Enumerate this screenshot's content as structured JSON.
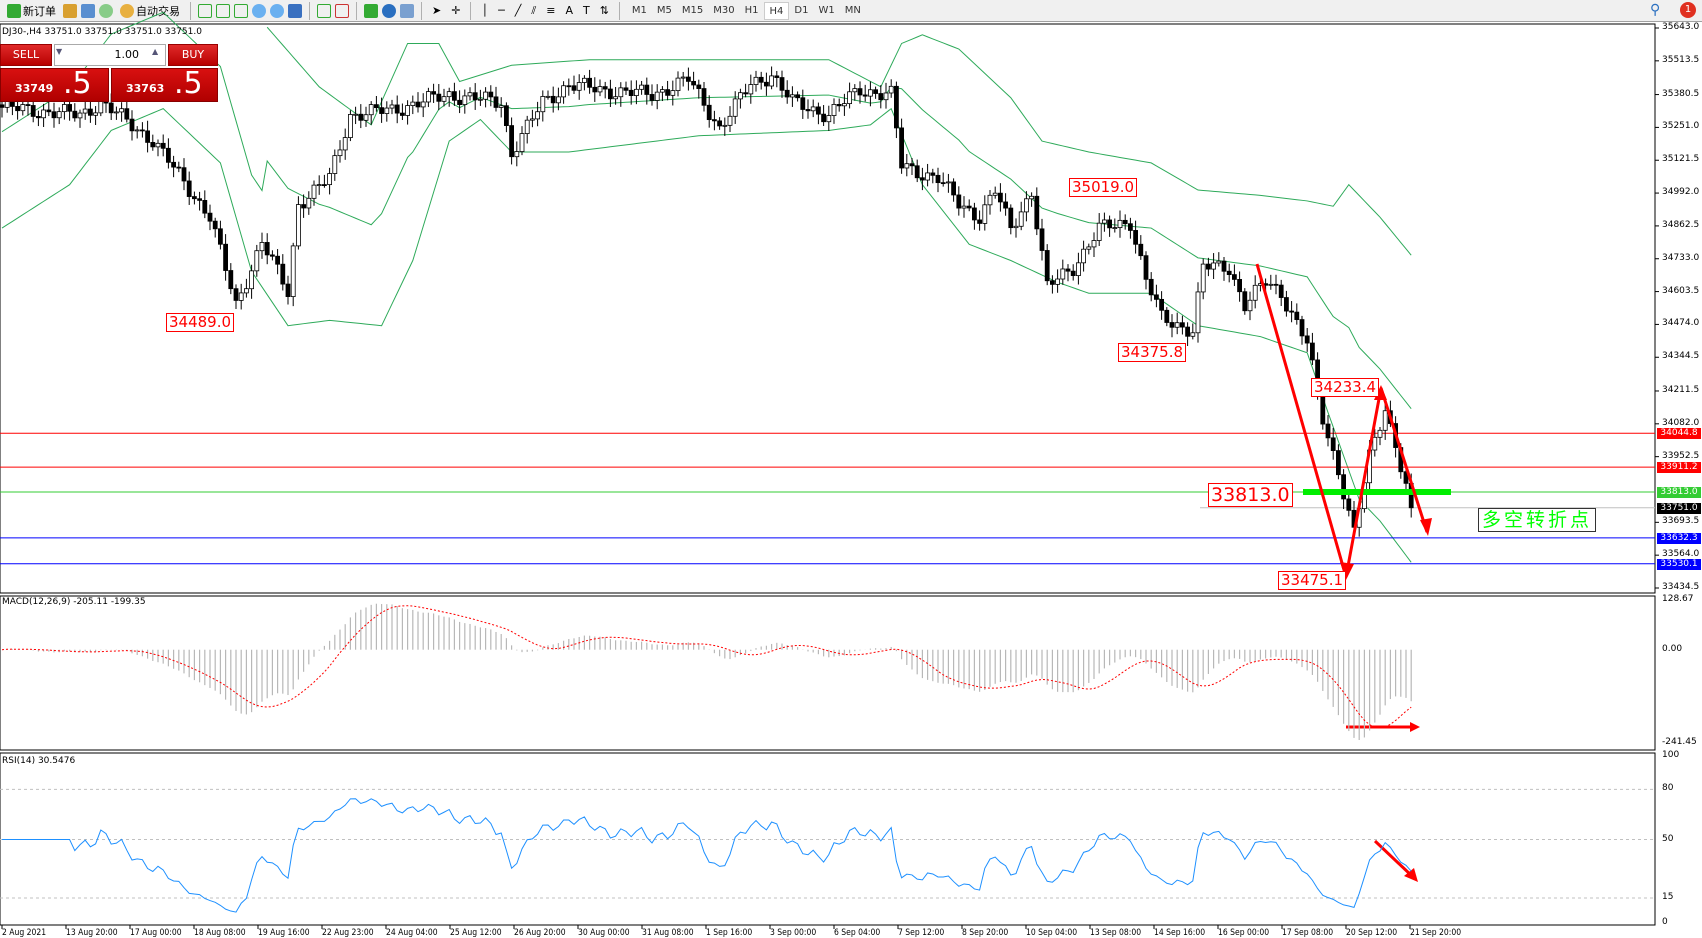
{
  "toolbar": {
    "new_order": "新订单",
    "auto_trading": "自动交易",
    "timeframes": [
      "M1",
      "M5",
      "M15",
      "M30",
      "H1",
      "H4",
      "D1",
      "W1",
      "MN"
    ],
    "active_timeframe": "H4",
    "notification_count": "1"
  },
  "header": {
    "symbol_info": "DJ30-,H4  33751.0 33751.0 33751.0 33751.0"
  },
  "trade_panel": {
    "sell_label": "SELL",
    "buy_label": "BUY",
    "lots": "1.00",
    "sell_price_small": "33749",
    "sell_price_big": ".5",
    "buy_price_small": "33763",
    "buy_price_big": ".5"
  },
  "price_axis": [
    "35643.0",
    "35513.5",
    "35380.5",
    "35251.0",
    "35121.5",
    "34992.0",
    "34862.5",
    "34733.0",
    "34603.5",
    "34474.0",
    "34344.5",
    "34211.5",
    "34082.0",
    "33952.5",
    "33693.5",
    "33564.0",
    "33434.5"
  ],
  "levels": [
    {
      "price": "34044.8",
      "color": "#ff0000"
    },
    {
      "price": "33911.2",
      "color": "#ff0000"
    },
    {
      "price": "33813.0",
      "color": "#33cc33"
    },
    {
      "price": "33751.0",
      "color": "#000000",
      "line": "#c0c0c0"
    },
    {
      "price": "33632.3",
      "color": "#0000ff"
    },
    {
      "price": "33530.1",
      "color": "#0000ff"
    }
  ],
  "annotations": {
    "labels": [
      "34489.0",
      "34375.8",
      "35019.0",
      "34233.4",
      "33813.0",
      "33475.1"
    ],
    "text": "多空转折点",
    "text_color": "#00ff00",
    "arrow_color": "#ff0000"
  },
  "chart_data": {
    "type": "candlestick",
    "close_path": [
      [
        0,
        35330
      ],
      [
        15,
        35300
      ],
      [
        19,
        35350
      ],
      [
        29,
        35200
      ],
      [
        40,
        34900
      ],
      [
        45,
        34550
      ],
      [
        50,
        34800
      ],
      [
        55,
        34600
      ],
      [
        57,
        34950
      ],
      [
        63,
        35050
      ],
      [
        67,
        35300
      ],
      [
        75,
        35320
      ],
      [
        86,
        35380
      ],
      [
        96,
        35350
      ],
      [
        98,
        35150
      ],
      [
        104,
        35350
      ],
      [
        109,
        35420
      ],
      [
        115,
        35400
      ],
      [
        125,
        35380
      ],
      [
        132,
        35440
      ],
      [
        138,
        35250
      ],
      [
        144,
        35420
      ],
      [
        148,
        35460
      ],
      [
        152,
        35350
      ],
      [
        159,
        35300
      ],
      [
        165,
        35400
      ],
      [
        171,
        35380
      ],
      [
        173,
        35100
      ],
      [
        180,
        35050
      ],
      [
        184,
        34950
      ],
      [
        188,
        34900
      ],
      [
        191,
        35000
      ],
      [
        194,
        34850
      ],
      [
        198,
        35000
      ],
      [
        201,
        34620
      ],
      [
        206,
        34700
      ],
      [
        211,
        34850
      ],
      [
        217,
        34880
      ],
      [
        220,
        34650
      ],
      [
        223,
        34500
      ],
      [
        229,
        34450
      ],
      [
        231,
        34700
      ],
      [
        236,
        34700
      ],
      [
        239,
        34550
      ],
      [
        243,
        34640
      ],
      [
        246,
        34600
      ],
      [
        251,
        34400
      ],
      [
        254,
        34100
      ],
      [
        257,
        33900
      ],
      [
        260,
        33650
      ],
      [
        263,
        33950
      ],
      [
        266,
        34150
      ],
      [
        268,
        34000
      ],
      [
        271,
        33751
      ]
    ],
    "bollinger_upper": [
      [
        51,
        35646
      ],
      [
        61,
        35411
      ],
      [
        71,
        35261
      ],
      [
        78,
        35582
      ],
      [
        84,
        35582
      ],
      [
        88,
        35432
      ],
      [
        98,
        35496
      ],
      [
        113,
        35518
      ],
      [
        159,
        35518
      ],
      [
        169,
        35411
      ],
      [
        173,
        35582
      ],
      [
        177,
        35616
      ],
      [
        184,
        35560
      ],
      [
        194,
        35368
      ],
      [
        200,
        35197
      ],
      [
        209,
        35154
      ],
      [
        221,
        35111
      ],
      [
        230,
        35004
      ],
      [
        242,
        34983
      ],
      [
        251,
        34961
      ],
      [
        256,
        34940
      ],
      [
        259,
        35025
      ],
      [
        265,
        34897
      ],
      [
        271,
        34747
      ]
    ],
    "bollinger_lower": [
      [
        0,
        34854
      ],
      [
        13,
        35025
      ],
      [
        21,
        35239
      ],
      [
        31,
        35325
      ],
      [
        42,
        35111
      ],
      [
        48,
        34683
      ],
      [
        55,
        34469
      ],
      [
        63,
        34490
      ],
      [
        73,
        34469
      ],
      [
        79,
        34726
      ],
      [
        86,
        35197
      ],
      [
        92,
        35282
      ],
      [
        98,
        35154
      ],
      [
        109,
        35154
      ],
      [
        134,
        35218
      ],
      [
        159,
        35239
      ],
      [
        167,
        35261
      ],
      [
        171,
        35325
      ],
      [
        177,
        35025
      ],
      [
        186,
        34790
      ],
      [
        194,
        34726
      ],
      [
        203,
        34640
      ],
      [
        209,
        34597
      ],
      [
        221,
        34597
      ],
      [
        230,
        34469
      ],
      [
        242,
        34426
      ],
      [
        251,
        34362
      ],
      [
        255,
        34127
      ],
      [
        261,
        33784
      ],
      [
        265,
        33699
      ],
      [
        271,
        33536
      ]
    ],
    "price_range": [
      33434.5,
      35643.0
    ],
    "macd": {
      "label": "MACD(12,26,9) -205.11 -199.35",
      "range": [
        -241.45,
        128.67
      ],
      "axis": [
        "128.67",
        "0.00",
        "-241.45"
      ]
    },
    "rsi": {
      "label": "RSI(14) 30.5476",
      "range": [
        0,
        100
      ],
      "levels": [
        80,
        50,
        15
      ],
      "axis": [
        "100",
        "80",
        "50",
        "15",
        "0"
      ]
    },
    "time_labels": [
      "2 Aug 2021",
      "13 Aug 20:00",
      "17 Aug 00:00",
      "18 Aug 08:00",
      "19 Aug 16:00",
      "22 Aug 23:00",
      "24 Aug 04:00",
      "25 Aug 12:00",
      "26 Aug 20:00",
      "30 Aug 00:00",
      "31 Aug 08:00",
      "1 Sep 16:00",
      "3 Sep 00:00",
      "6 Sep 04:00",
      "7 Sep 12:00",
      "8 Sep 20:00",
      "10 Sep 04:00",
      "13 Sep 08:00",
      "14 Sep 16:00",
      "16 Sep 00:00",
      "17 Sep 08:00",
      "20 Sep 12:00",
      "21 Sep 20:00"
    ]
  }
}
